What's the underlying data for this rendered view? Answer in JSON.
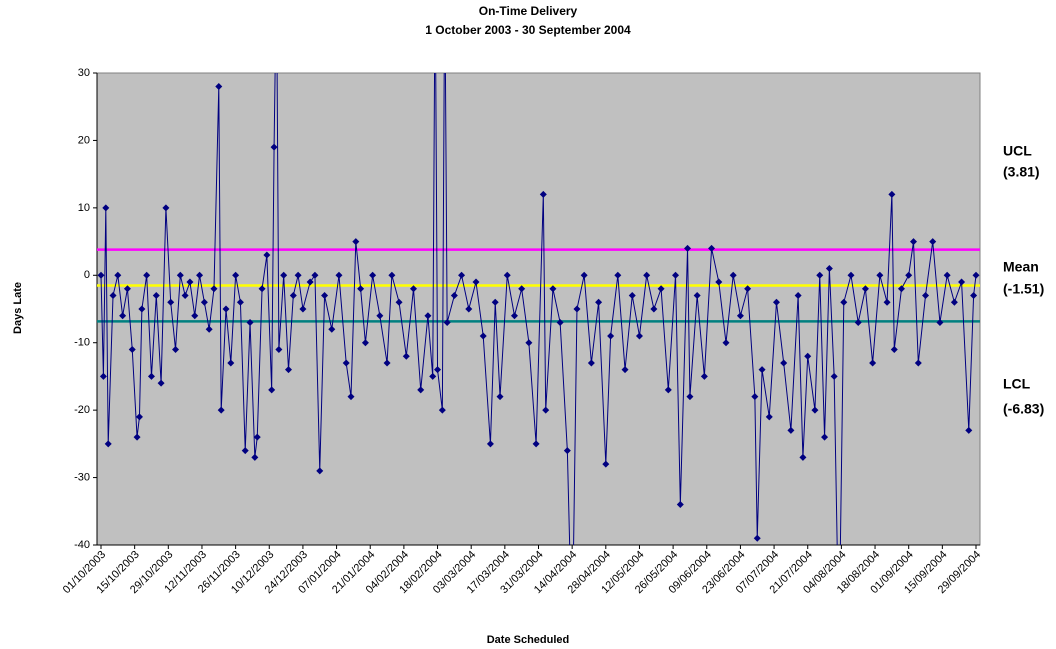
{
  "chart_data": {
    "type": "line",
    "title": "On-Time Delivery",
    "subtitle": "1 October 2003 - 30 September 2004",
    "x_label": "Date Scheduled",
    "y_label": "Days Late",
    "ylim": [
      -40,
      30
    ],
    "yticks": [
      -40,
      -30,
      -20,
      -10,
      0,
      10,
      20,
      30
    ],
    "xlim": [
      "01/10/2003",
      "29/09/2004"
    ],
    "xticks": [
      "01/10/2003",
      "15/10/2003",
      "29/10/2003",
      "12/11/2003",
      "26/11/2003",
      "10/12/2003",
      "24/12/2003",
      "07/01/2004",
      "21/01/2004",
      "04/02/2004",
      "18/02/2004",
      "03/03/2004",
      "17/03/2004",
      "31/03/2004",
      "14/04/2004",
      "28/04/2004",
      "12/05/2004",
      "26/05/2004",
      "09/06/2004",
      "23/06/2004",
      "07/07/2004",
      "21/07/2004",
      "04/08/2004",
      "18/08/2004",
      "01/09/2004",
      "15/09/2004",
      "29/09/2004"
    ],
    "background": "#c0c0c0",
    "x": [
      "01/10/2003",
      "02/10/2003",
      "03/10/2003",
      "04/10/2003",
      "06/10/2003",
      "08/10/2003",
      "10/10/2003",
      "12/10/2003",
      "14/10/2003",
      "16/10/2003",
      "17/10/2003",
      "18/10/2003",
      "20/10/2003",
      "22/10/2003",
      "24/10/2003",
      "26/10/2003",
      "28/10/2003",
      "30/10/2003",
      "01/11/2003",
      "03/11/2003",
      "05/11/2003",
      "07/11/2003",
      "09/11/2003",
      "11/11/2003",
      "13/11/2003",
      "15/11/2003",
      "17/11/2003",
      "19/11/2003",
      "20/11/2003",
      "22/11/2003",
      "24/11/2003",
      "26/11/2003",
      "28/11/2003",
      "30/11/2003",
      "02/12/2003",
      "04/12/2003",
      "05/12/2003",
      "07/12/2003",
      "09/12/2003",
      "11/12/2003",
      "12/12/2003",
      "13/12/2003",
      "14/12/2003",
      "16/12/2003",
      "18/12/2003",
      "20/12/2003",
      "22/12/2003",
      "24/12/2003",
      "27/12/2003",
      "29/12/2003",
      "31/12/2003",
      "02/01/2004",
      "05/01/2004",
      "08/01/2004",
      "11/01/2004",
      "13/01/2004",
      "15/01/2004",
      "17/01/2004",
      "19/01/2004",
      "22/01/2004",
      "25/01/2004",
      "28/01/2004",
      "30/01/2004",
      "02/02/2004",
      "05/02/2004",
      "08/02/2004",
      "11/02/2004",
      "14/02/2004",
      "16/02/2004",
      "17/02/2004",
      "18/02/2004",
      "20/02/2004",
      "21/02/2004",
      "22/02/2004",
      "25/02/2004",
      "28/02/2004",
      "02/03/2004",
      "05/03/2004",
      "08/03/2004",
      "11/03/2004",
      "13/03/2004",
      "15/03/2004",
      "18/03/2004",
      "21/03/2004",
      "24/03/2004",
      "27/03/2004",
      "30/03/2004",
      "02/04/2004",
      "03/04/2004",
      "06/04/2004",
      "09/04/2004",
      "12/04/2004",
      "14/04/2004",
      "16/04/2004",
      "19/04/2004",
      "22/04/2004",
      "25/04/2004",
      "28/04/2004",
      "30/04/2004",
      "03/05/2004",
      "06/05/2004",
      "09/05/2004",
      "12/05/2004",
      "15/05/2004",
      "18/05/2004",
      "21/05/2004",
      "24/05/2004",
      "27/05/2004",
      "29/05/2004",
      "01/06/2004",
      "02/06/2004",
      "05/06/2004",
      "08/06/2004",
      "11/06/2004",
      "14/06/2004",
      "17/06/2004",
      "20/06/2004",
      "23/06/2004",
      "26/06/2004",
      "29/06/2004",
      "30/06/2004",
      "02/07/2004",
      "05/07/2004",
      "08/07/2004",
      "11/07/2004",
      "14/07/2004",
      "17/07/2004",
      "19/07/2004",
      "21/07/2004",
      "24/07/2004",
      "26/07/2004",
      "28/07/2004",
      "30/07/2004",
      "01/08/2004",
      "03/08/2004",
      "05/08/2004",
      "08/08/2004",
      "11/08/2004",
      "14/08/2004",
      "17/08/2004",
      "20/08/2004",
      "23/08/2004",
      "25/08/2004",
      "26/08/2004",
      "29/08/2004",
      "01/09/2004",
      "03/09/2004",
      "05/09/2004",
      "08/09/2004",
      "11/09/2004",
      "14/09/2004",
      "17/09/2004",
      "20/09/2004",
      "23/09/2004",
      "26/09/2004",
      "28/09/2004",
      "29/09/2004"
    ],
    "series": [
      {
        "name": "Days Late",
        "color": "#000080",
        "values": [
          0,
          -15,
          10,
          -25,
          -3,
          0,
          -6,
          -2,
          -11,
          -24,
          -21,
          -5,
          0,
          -15,
          -3,
          -16,
          10,
          -4,
          -11,
          0,
          -3,
          -1,
          -6,
          0,
          -4,
          -8,
          -2,
          28,
          -20,
          -5,
          -13,
          0,
          -4,
          -26,
          -7,
          -27,
          -24,
          -2,
          3,
          -17,
          19,
          45,
          -11,
          0,
          -14,
          -3,
          0,
          -5,
          -1,
          0,
          -29,
          -3,
          -8,
          0,
          -13,
          -18,
          5,
          -2,
          -10,
          0,
          -6,
          -13,
          0,
          -4,
          -12,
          -2,
          -17,
          -6,
          -15,
          45,
          -14,
          -20,
          45,
          -7,
          -3,
          0,
          -5,
          -1,
          -9,
          -25,
          -4,
          -18,
          0,
          -6,
          -2,
          -10,
          -25,
          12,
          -20,
          -2,
          -7,
          -26,
          -55,
          -5,
          0,
          -13,
          -4,
          -28,
          -9,
          0,
          -14,
          -3,
          -9,
          0,
          -5,
          -2,
          -17,
          0,
          -34,
          4,
          -18,
          -3,
          -15,
          4,
          -1,
          -10,
          0,
          -6,
          -2,
          -18,
          -39,
          -14,
          -21,
          -4,
          -13,
          -23,
          -3,
          -27,
          -12,
          -20,
          0,
          -24,
          1,
          -15,
          -55,
          -4,
          0,
          -7,
          -2,
          -13,
          0,
          -4,
          12,
          -11,
          -2,
          0,
          5,
          -13,
          -3,
          5,
          -7,
          0,
          -4,
          -1,
          -23,
          -3,
          0
        ]
      }
    ],
    "control_lines": [
      {
        "name": "UCL",
        "value": 3.81,
        "value_label": "(3.81)",
        "color": "#ff00ff"
      },
      {
        "name": "Mean",
        "value": -1.51,
        "value_label": "(-1.51)",
        "color": "#ffff00"
      },
      {
        "name": "LCL",
        "value": -6.83,
        "value_label": "(-6.83)",
        "color": "#008080"
      }
    ]
  }
}
